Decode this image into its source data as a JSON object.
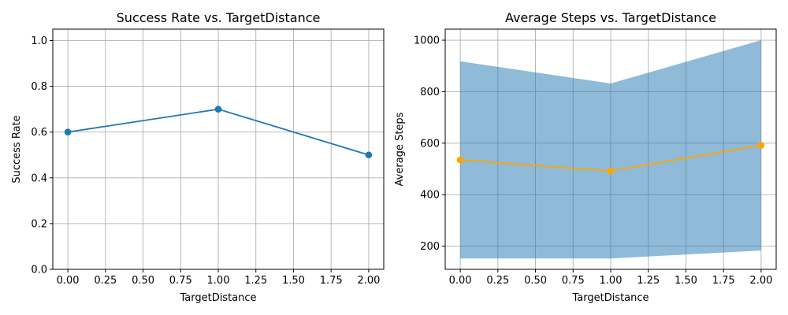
{
  "chart_data": [
    {
      "type": "line",
      "title": "Success Rate vs. TargetDistance",
      "xlabel": "TargetDistance",
      "ylabel": "Success Rate",
      "x": [
        0,
        1,
        2
      ],
      "series": [
        {
          "values": [
            0.6,
            0.7,
            0.5
          ],
          "color": "#1f77b4",
          "marker": "circle"
        }
      ],
      "xlim": [
        -0.1,
        2.1
      ],
      "ylim": [
        0,
        1.05
      ],
      "xticks": [
        0,
        0.25,
        0.5,
        0.75,
        1,
        1.25,
        1.5,
        1.75,
        2
      ],
      "xtick_labels": [
        "0.00",
        "0.25",
        "0.50",
        "0.75",
        "1.00",
        "1.25",
        "1.50",
        "1.75",
        "2.00"
      ],
      "yticks": [
        0,
        0.2,
        0.4,
        0.6,
        0.8,
        1.0
      ],
      "ytick_labels": [
        "0.0",
        "0.2",
        "0.4",
        "0.6",
        "0.8",
        "1.0"
      ],
      "grid": true
    },
    {
      "type": "line",
      "title": "Average Steps vs. TargetDistance",
      "xlabel": "TargetDistance",
      "ylabel": "Average Steps",
      "x": [
        0,
        1,
        2
      ],
      "series": [
        {
          "values": [
            535,
            492,
            592
          ],
          "color": "#ffa500",
          "marker": "circle"
        }
      ],
      "band": {
        "lower": [
          152,
          152,
          183
        ],
        "upper": [
          918,
          832,
          1000
        ],
        "color": "#1f77b4",
        "alpha": 0.5
      },
      "xlim": [
        -0.1,
        2.1
      ],
      "ylim": [
        110,
        1043
      ],
      "xticks": [
        0,
        0.25,
        0.5,
        0.75,
        1,
        1.25,
        1.5,
        1.75,
        2
      ],
      "xtick_labels": [
        "0.00",
        "0.25",
        "0.50",
        "0.75",
        "1.00",
        "1.25",
        "1.50",
        "1.75",
        "2.00"
      ],
      "yticks": [
        200,
        400,
        600,
        800,
        1000
      ],
      "ytick_labels": [
        "200",
        "400",
        "600",
        "800",
        "1000"
      ],
      "grid": true
    }
  ]
}
